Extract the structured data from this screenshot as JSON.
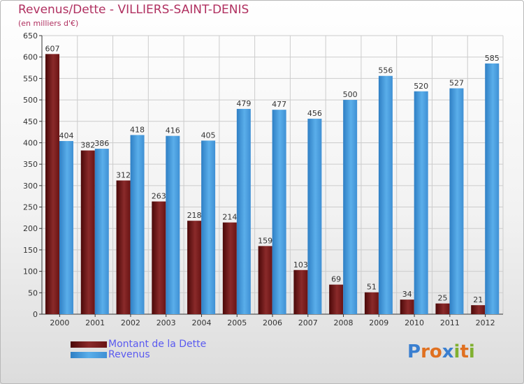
{
  "chart_data": {
    "type": "bar",
    "title": "Revenus/Dette - VILLIERS-SAINT-DENIS",
    "subtitle": "(en milliers d'€)",
    "xlabel": "",
    "ylabel": "(en milliers d'€)",
    "ylim": [
      0,
      650
    ],
    "yticks": [
      0,
      50,
      100,
      150,
      200,
      250,
      300,
      350,
      400,
      450,
      500,
      550,
      600,
      650
    ],
    "grid": true,
    "legend_position": "bottom-left",
    "categories": [
      "2000",
      "2001",
      "2002",
      "2003",
      "2004",
      "2005",
      "2006",
      "2007",
      "2008",
      "2009",
      "2010",
      "2011",
      "2012"
    ],
    "series": [
      {
        "name": "Montant de la Dette",
        "color": "#7a1a1a",
        "values": [
          607,
          382,
          312,
          263,
          218,
          214,
          159,
          103,
          69,
          51,
          34,
          25,
          21
        ]
      },
      {
        "name": "Revenus",
        "color": "#4fa3e3",
        "values": [
          404,
          386,
          418,
          416,
          405,
          479,
          477,
          456,
          500,
          556,
          520,
          527,
          585
        ]
      }
    ]
  },
  "logo": {
    "chars": [
      "P",
      "r",
      "o",
      "x",
      "i",
      "t",
      "i"
    ],
    "colors": [
      "#3a7fd0",
      "#e07020",
      "#e07020",
      "#3a7fd0",
      "#80b030",
      "#e07020",
      "#80b030"
    ]
  }
}
